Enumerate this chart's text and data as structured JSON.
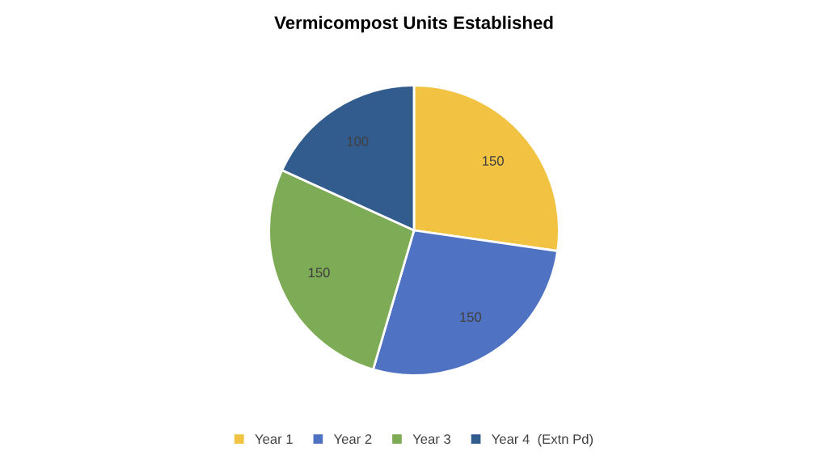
{
  "chart_data": {
    "type": "pie",
    "title": "Vermicompost Units Established",
    "categories": [
      "Year 1",
      "Year 2",
      "Year 3",
      "Year 4  (Extn Pd)"
    ],
    "values": [
      150,
      150,
      150,
      100
    ],
    "colors": [
      "#f2c343",
      "#5072c2",
      "#7eab55",
      "#335c8e"
    ],
    "data_labels": true,
    "legend": "bottom"
  }
}
